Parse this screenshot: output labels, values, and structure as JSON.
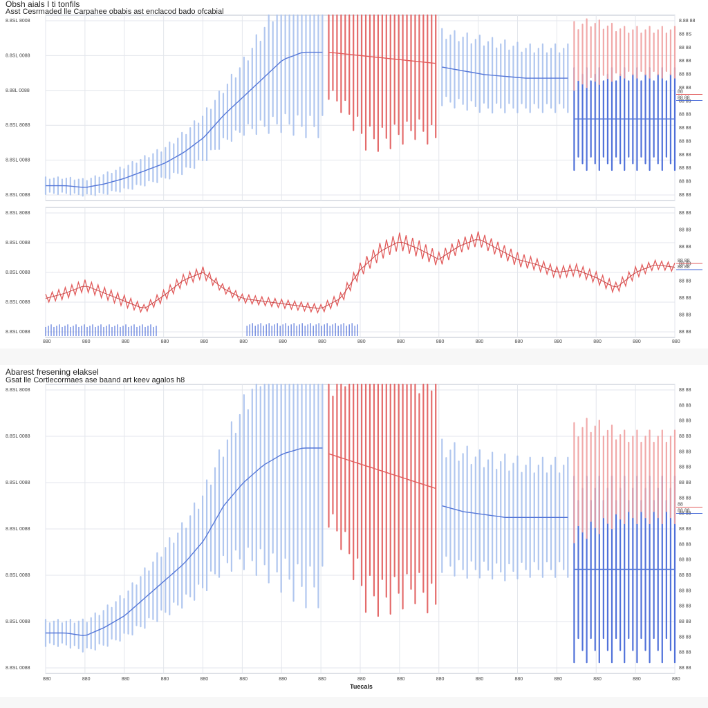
{
  "top_panel": {
    "title": "Obsh aials I ti tonfils",
    "subtitle": "Asst Cesrmaded lle Carpahee obabis ast enclacod bado ofcabial"
  },
  "bottom_panel": {
    "title": "Abarest fresening elaksel",
    "subtitle": "Gsat lle Cortlecormaes ase baand art keev agalos h8"
  },
  "colors": {
    "blue_light": "#a9c1ee",
    "blue_dark": "#3f63d6",
    "blue_line": "#5577d8",
    "red": "#e25c5c",
    "red_light": "#f0a0a0",
    "grid": "#e3e6ec",
    "axis": "#bcc3cf"
  },
  "chart_data": [
    {
      "id": "top-upper",
      "type": "line",
      "ylabels_left": [
        "8.8SL 8008",
        "8.8SL 0088",
        "8.88L 0088",
        "8.8SL 8088",
        "8.8SL 0088",
        "8.8SL 0088"
      ],
      "ylabels_right": [
        "8.88 88",
        "88 8S",
        "88 88",
        "88 88",
        "88 88",
        "88 88",
        "88 88",
        "88 88",
        "88 88",
        "88 88",
        "88 88",
        "88 88",
        "88 88",
        "88 88"
      ],
      "legend_markers": [
        "88",
        "88 88"
      ],
      "ylim": [
        0,
        100
      ],
      "segments": [
        {
          "name": "",
          "color_key": "blue_light",
          "x0": 0,
          "x1": 44,
          "center": [
            8,
            8,
            7,
            9,
            12,
            16,
            20,
            26,
            34,
            46,
            56,
            66,
            76,
            80,
            80
          ],
          "amplitude": [
            4,
            4,
            4,
            5,
            6,
            7,
            8,
            10,
            12,
            14,
            18,
            26,
            34,
            40,
            40
          ]
        },
        {
          "name": "",
          "color_key": "red",
          "x0": 45,
          "x1": 62,
          "center": [
            80,
            79,
            78,
            77,
            76,
            75,
            74
          ],
          "amplitude": [
            22,
            30,
            44,
            44,
            40,
            36,
            40
          ]
        },
        {
          "name": "",
          "color_key": "blue_light",
          "x0": 63,
          "x1": 83,
          "center": [
            72,
            70,
            68,
            67,
            66,
            66,
            66
          ],
          "amplitude": [
            18,
            18,
            18,
            17,
            16,
            16,
            16
          ]
        },
        {
          "name": "",
          "color_key": "blue_dark",
          "x0": 84,
          "x1": 100,
          "center": [
            44,
            44,
            44,
            44,
            44,
            44,
            44
          ],
          "amplitude": [
            24,
            24,
            24,
            24,
            24,
            24,
            24
          ]
        },
        {
          "name": "",
          "color_key": "red_light",
          "x0": 84,
          "x1": 100,
          "center": [
            78,
            80,
            80,
            80,
            80,
            80,
            80
          ],
          "amplitude": [
            16,
            16,
            14,
            12,
            12,
            12,
            12
          ]
        }
      ]
    },
    {
      "id": "top-lower",
      "type": "line",
      "ylabels_left": [
        "8.8SL 8088",
        "8.8SL 0088",
        "8.8SL 0088",
        "8.8SL 0088",
        "8.8SL 0088"
      ],
      "ylabels_right": [
        "88 88",
        "88 88",
        "88 88",
        "88 88",
        "88 88",
        "88 88",
        "88 88",
        "88 88"
      ],
      "legend_markers": [
        "88 88",
        "88 88"
      ],
      "xticks": [
        "880",
        "880",
        "880",
        "880",
        "880",
        "880",
        "880",
        "880",
        "880",
        "880",
        "880",
        "880",
        "880",
        "880",
        "880",
        "880",
        "880"
      ],
      "ylim": [
        0,
        100
      ],
      "red_series": [
        30,
        34,
        40,
        34,
        28,
        22,
        32,
        44,
        50,
        38,
        30,
        28,
        26,
        24,
        22,
        30,
        52,
        66,
        74,
        68,
        60,
        70,
        76,
        68,
        60,
        56,
        50,
        52,
        46,
        38,
        50,
        56,
        54
      ],
      "red_amplitude": [
        6,
        8,
        8,
        8,
        8,
        6,
        8,
        8,
        8,
        6,
        6,
        6,
        6,
        6,
        6,
        8,
        10,
        12,
        12,
        12,
        10,
        10,
        10,
        10,
        10,
        8,
        8,
        8,
        8,
        8,
        8,
        6,
        6
      ],
      "blue_bars": [
        {
          "x0": 0,
          "x1": 18,
          "value": 8
        },
        {
          "x0": 32,
          "x1": 50,
          "value": 9
        }
      ]
    },
    {
      "id": "bottom",
      "type": "line",
      "ylabels_left": [
        "8.8SL 8008",
        "8.8SL 0088",
        "8.8SL 0088",
        "8.8SL 0088",
        "8.8SL 0088",
        "8.8SL 0088",
        "8.8SL 0088"
      ],
      "ylabels_right": [
        "88 88",
        "88 88",
        "88 88",
        "88 88",
        "88 88",
        "88 88",
        "88 88",
        "88 88",
        "88 88",
        "88 88",
        "88 88",
        "88 88",
        "88 88",
        "88 88",
        "88 88",
        "88 88",
        "88 88",
        "88 88",
        "88 88"
      ],
      "legend_markers": [
        "88",
        "88 88"
      ],
      "xticks": [
        "880",
        "880",
        "880",
        "880",
        "880",
        "880",
        "880",
        "880",
        "880",
        "880",
        "880",
        "880",
        "880",
        "880",
        "880",
        "880",
        "880"
      ],
      "xlabel": "Tuecals",
      "ylim": [
        0,
        100
      ],
      "segments": [
        {
          "name": "",
          "color_key": "blue_light",
          "x0": 0,
          "x1": 44,
          "center": [
            14,
            14,
            13,
            16,
            20,
            26,
            32,
            38,
            46,
            58,
            66,
            72,
            76,
            78,
            78
          ],
          "amplitude": [
            4,
            4,
            5,
            6,
            7,
            9,
            11,
            13,
            16,
            20,
            26,
            34,
            42,
            48,
            48
          ]
        },
        {
          "name": "",
          "color_key": "red",
          "x0": 45,
          "x1": 62,
          "center": [
            76,
            74,
            72,
            70,
            68,
            66,
            64
          ],
          "amplitude": [
            22,
            30,
            44,
            44,
            40,
            36,
            40
          ]
        },
        {
          "name": "",
          "color_key": "blue_light",
          "x0": 63,
          "x1": 83,
          "center": [
            58,
            56,
            55,
            54,
            54,
            54,
            54
          ],
          "amplitude": [
            20,
            20,
            19,
            19,
            18,
            18,
            18
          ]
        },
        {
          "name": "",
          "color_key": "blue_dark",
          "x0": 84,
          "x1": 100,
          "center": [
            36,
            36,
            36,
            36,
            36,
            36,
            36
          ],
          "amplitude": [
            28,
            28,
            28,
            28,
            28,
            28,
            28
          ]
        },
        {
          "name": "",
          "color_key": "red_light",
          "x0": 84,
          "x1": 100,
          "center": [
            66,
            68,
            68,
            68,
            68,
            68,
            68
          ],
          "amplitude": [
            18,
            18,
            16,
            14,
            14,
            14,
            14
          ]
        }
      ]
    }
  ]
}
